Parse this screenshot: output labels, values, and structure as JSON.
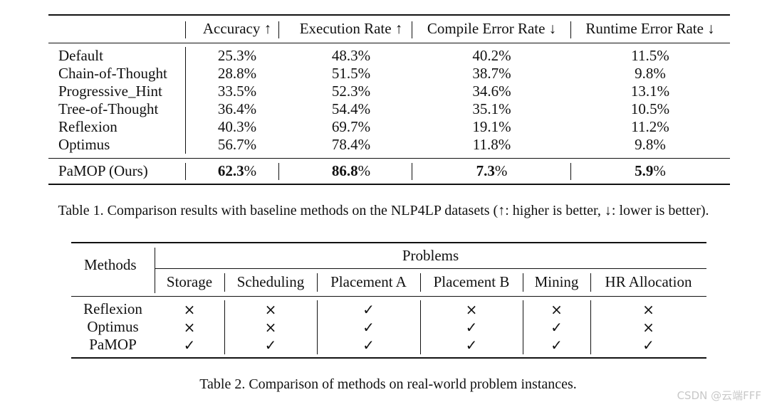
{
  "table1": {
    "headers": [
      "",
      "Accuracy ↑",
      "Execution Rate ↑",
      "Compile Error Rate ↓",
      "Runtime Error Rate ↓"
    ],
    "rows": [
      {
        "method": "Default",
        "accuracy": "25.3%",
        "execution": "48.3%",
        "compile": "40.2%",
        "runtime": "11.5%"
      },
      {
        "method": "Chain-of-Thought",
        "accuracy": "28.8%",
        "execution": "51.5%",
        "compile": "38.7%",
        "runtime": "9.8%"
      },
      {
        "method": "Progressive_Hint",
        "accuracy": "33.5%",
        "execution": "52.3%",
        "compile": "34.6%",
        "runtime": "13.1%"
      },
      {
        "method": "Tree-of-Thought",
        "accuracy": "36.4%",
        "execution": "54.4%",
        "compile": "35.1%",
        "runtime": "10.5%"
      },
      {
        "method": "Reflexion",
        "accuracy": "40.3%",
        "execution": "69.7%",
        "compile": "19.1%",
        "runtime": "11.2%"
      },
      {
        "method": "Optimus",
        "accuracy": "56.7%",
        "execution": "78.4%",
        "compile": "11.8%",
        "runtime": "9.8%"
      }
    ],
    "ours": {
      "method": "PaMOP (Ours)",
      "accuracy": "62.3",
      "execution": "86.8",
      "compile": "7.3",
      "runtime": "5.9",
      "unit": "%"
    },
    "caption": "Table 1. Comparison results with baseline methods on the NLP4LP datasets (↑: higher is better, ↓: lower is better)."
  },
  "table2": {
    "methods_header": "Methods",
    "problems_header": "Problems",
    "columns": [
      "Storage",
      "Scheduling",
      "Placement A",
      "Placement B",
      "Mining",
      "HR Allocation"
    ],
    "rows": [
      {
        "method": "Reflexion",
        "marks": [
          "×",
          "×",
          "✓",
          "×",
          "×",
          "×"
        ]
      },
      {
        "method": "Optimus",
        "marks": [
          "×",
          "×",
          "✓",
          "✓",
          "✓",
          "×"
        ]
      },
      {
        "method": "PaMOP",
        "marks": [
          "✓",
          "✓",
          "✓",
          "✓",
          "✓",
          "✓"
        ]
      }
    ],
    "caption": "Table 2. Comparison of methods on real-world problem instances."
  },
  "watermark": "CSDN @云端FFF"
}
